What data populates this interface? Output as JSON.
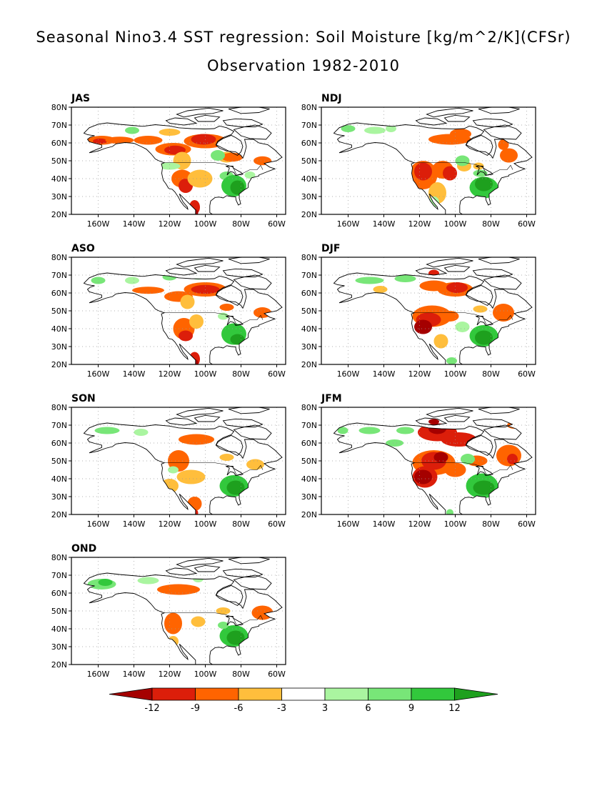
{
  "title": "Seasonal Nino3.4 SST regression: Soil Moisture [kg/m^2/K](CFSr)",
  "subtitle": "Observation 1982-2010",
  "lat_ticks": [
    "80N",
    "70N",
    "60N",
    "50N",
    "40N",
    "30N",
    "20N"
  ],
  "lon_ticks": [
    "160W",
    "140W",
    "120W",
    "100W",
    "80W",
    "60W"
  ],
  "panels": [
    {
      "id": "JAS",
      "label": "JAS"
    },
    {
      "id": "NDJ",
      "label": "NDJ"
    },
    {
      "id": "ASO",
      "label": "ASO"
    },
    {
      "id": "DJF",
      "label": "DJF"
    },
    {
      "id": "SON",
      "label": "SON"
    },
    {
      "id": "JFM",
      "label": "JFM"
    },
    {
      "id": "OND",
      "label": "OND"
    }
  ],
  "colorbar": {
    "labels": [
      "-12",
      "-9",
      "-6",
      "-3",
      "3",
      "6",
      "9",
      "12"
    ],
    "colors": [
      "#a50000",
      "#dc1e0a",
      "#ff6400",
      "#ffbe3c",
      "#ffffff",
      "#aaf5a0",
      "#78e678",
      "#32c83c",
      "#1ea01e"
    ]
  },
  "chart_data": {
    "type": "heatmap",
    "title": "Seasonal Nino3.4 SST regression: Soil Moisture [kg/m^2/K](CFSr)",
    "subtitle": "Observation 1982-2010",
    "units": "kg/m^2/K",
    "region": {
      "lon_range": [
        "175W",
        "55W"
      ],
      "lat_range": [
        "20N",
        "80N"
      ]
    },
    "contour_levels": [
      -12,
      -9,
      -6,
      -3,
      3,
      6,
      9,
      12
    ],
    "seasons": [
      "JAS",
      "NDJ",
      "ASO",
      "DJF",
      "SON",
      "JFM",
      "OND"
    ],
    "features": {
      "JAS": [
        {
          "lon": -115,
          "lat": 57,
          "value": -9
        },
        {
          "lon": -100,
          "lat": 62,
          "value": -9
        },
        {
          "lon": -107,
          "lat": 21,
          "value": -12
        },
        {
          "lon": -113,
          "lat": 37,
          "value": -6
        },
        {
          "lon": -83,
          "lat": 36,
          "value": 9
        },
        {
          "lon": -158,
          "lat": 62,
          "value": -9
        }
      ],
      "NDJ": [
        {
          "lon": -118,
          "lat": 43,
          "value": -9
        },
        {
          "lon": -104,
          "lat": 62,
          "value": -6
        },
        {
          "lon": -82,
          "lat": 35,
          "value": 9
        },
        {
          "lon": -66,
          "lat": 50,
          "value": -6
        }
      ],
      "ASO": [
        {
          "lon": -100,
          "lat": 62,
          "value": -9
        },
        {
          "lon": -107,
          "lat": 22,
          "value": -12
        },
        {
          "lon": -113,
          "lat": 37,
          "value": -6
        },
        {
          "lon": -83,
          "lat": 36,
          "value": 9
        }
      ],
      "DJF": [
        {
          "lon": -114,
          "lat": 46,
          "value": -9
        },
        {
          "lon": -119,
          "lat": 41,
          "value": -12
        },
        {
          "lon": -100,
          "lat": 62,
          "value": -9
        },
        {
          "lon": -84,
          "lat": 36,
          "value": 9
        },
        {
          "lon": -68,
          "lat": 50,
          "value": -6
        }
      ],
      "SON": [
        {
          "lon": -102,
          "lat": 62,
          "value": -6
        },
        {
          "lon": -115,
          "lat": 48,
          "value": -6
        },
        {
          "lon": -84,
          "lat": 35,
          "value": 12
        },
        {
          "lon": -106,
          "lat": 22,
          "value": -9
        }
      ],
      "JFM": [
        {
          "lon": -118,
          "lat": 41,
          "value": -12
        },
        {
          "lon": -112,
          "lat": 50,
          "value": -12
        },
        {
          "lon": -110,
          "lat": 66,
          "value": -12
        },
        {
          "lon": -98,
          "lat": 62,
          "value": -9
        },
        {
          "lon": -84,
          "lat": 35,
          "value": 12
        },
        {
          "lon": -68,
          "lat": 53,
          "value": -6
        }
      ],
      "OND": [
        {
          "lon": -120,
          "lat": 42,
          "value": -6
        },
        {
          "lon": -110,
          "lat": 62,
          "value": -6
        },
        {
          "lon": -84,
          "lat": 35,
          "value": 9
        },
        {
          "lon": -155,
          "lat": 65,
          "value": 6
        }
      ]
    }
  }
}
